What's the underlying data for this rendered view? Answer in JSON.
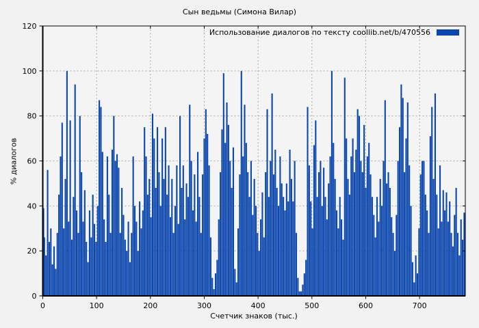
{
  "page": {
    "background": "#f2f2f2"
  },
  "chart_data": {
    "type": "bar",
    "title": "Сын ведьмы (Симона Вилар)",
    "legend": {
      "label": "Использование диалогов по тексту  coollib.net/b/470556",
      "position": "top-right-inside"
    },
    "xlabel": "Счетчик знаков (тыс.)",
    "ylabel": "% диалогов",
    "xlim": [
      0,
      785
    ],
    "ylim": [
      0,
      120
    ],
    "xticks": [
      0,
      100,
      200,
      300,
      400,
      500,
      600,
      700
    ],
    "yticks": [
      0,
      20,
      40,
      60,
      80,
      100,
      120
    ],
    "grid": true,
    "grid_color": "#a8a8a8",
    "bar_color": "#0c47ad",
    "background_color": "#f2f2f2",
    "plot_background": "#f4f4f4",
    "points": [
      [
        0,
        39
      ],
      [
        3,
        26
      ],
      [
        6,
        18
      ],
      [
        9,
        56
      ],
      [
        12,
        24
      ],
      [
        15,
        30
      ],
      [
        18,
        14
      ],
      [
        21,
        22
      ],
      [
        24,
        12
      ],
      [
        27,
        28
      ],
      [
        30,
        45
      ],
      [
        33,
        62
      ],
      [
        36,
        77
      ],
      [
        39,
        30
      ],
      [
        42,
        52
      ],
      [
        45,
        100
      ],
      [
        48,
        33
      ],
      [
        51,
        78
      ],
      [
        54,
        25
      ],
      [
        57,
        44
      ],
      [
        60,
        94
      ],
      [
        63,
        38
      ],
      [
        66,
        28
      ],
      [
        69,
        80
      ],
      [
        72,
        55
      ],
      [
        75,
        33
      ],
      [
        78,
        47
      ],
      [
        81,
        24
      ],
      [
        84,
        15
      ],
      [
        87,
        38
      ],
      [
        90,
        26
      ],
      [
        93,
        45
      ],
      [
        96,
        32
      ],
      [
        99,
        24
      ],
      [
        102,
        40
      ],
      [
        105,
        87
      ],
      [
        108,
        84
      ],
      [
        111,
        64
      ],
      [
        114,
        34
      ],
      [
        117,
        24
      ],
      [
        120,
        62
      ],
      [
        123,
        45
      ],
      [
        126,
        28
      ],
      [
        129,
        65
      ],
      [
        132,
        80
      ],
      [
        135,
        60
      ],
      [
        138,
        63
      ],
      [
        141,
        57
      ],
      [
        144,
        28
      ],
      [
        147,
        48
      ],
      [
        150,
        36
      ],
      [
        153,
        25
      ],
      [
        156,
        20
      ],
      [
        159,
        33
      ],
      [
        162,
        15
      ],
      [
        165,
        28
      ],
      [
        168,
        62
      ],
      [
        171,
        40
      ],
      [
        174,
        33
      ],
      [
        177,
        20
      ],
      [
        180,
        42
      ],
      [
        183,
        30
      ],
      [
        186,
        38
      ],
      [
        189,
        75
      ],
      [
        192,
        62
      ],
      [
        195,
        45
      ],
      [
        198,
        52
      ],
      [
        201,
        35
      ],
      [
        204,
        81
      ],
      [
        207,
        70
      ],
      [
        210,
        48
      ],
      [
        213,
        75
      ],
      [
        216,
        55
      ],
      [
        219,
        40
      ],
      [
        222,
        70
      ],
      [
        225,
        52
      ],
      [
        228,
        75
      ],
      [
        231,
        45
      ],
      [
        234,
        58
      ],
      [
        237,
        35
      ],
      [
        240,
        52
      ],
      [
        243,
        28
      ],
      [
        246,
        40
      ],
      [
        249,
        58
      ],
      [
        252,
        32
      ],
      [
        255,
        80
      ],
      [
        258,
        48
      ],
      [
        261,
        58
      ],
      [
        264,
        34
      ],
      [
        267,
        50
      ],
      [
        270,
        44
      ],
      [
        273,
        85
      ],
      [
        276,
        60
      ],
      [
        279,
        38
      ],
      [
        282,
        54
      ],
      [
        285,
        33
      ],
      [
        288,
        64
      ],
      [
        291,
        44
      ],
      [
        294,
        28
      ],
      [
        297,
        54
      ],
      [
        300,
        70
      ],
      [
        303,
        83
      ],
      [
        306,
        72
      ],
      [
        309,
        58
      ],
      [
        312,
        26
      ],
      [
        315,
        8
      ],
      [
        318,
        3
      ],
      [
        321,
        10
      ],
      [
        324,
        16
      ],
      [
        327,
        34
      ],
      [
        330,
        55
      ],
      [
        333,
        74
      ],
      [
        336,
        99
      ],
      [
        339,
        68
      ],
      [
        342,
        86
      ],
      [
        345,
        76
      ],
      [
        348,
        60
      ],
      [
        351,
        48
      ],
      [
        354,
        66
      ],
      [
        357,
        12
      ],
      [
        360,
        6
      ],
      [
        363,
        30
      ],
      [
        366,
        54
      ],
      [
        369,
        100
      ],
      [
        372,
        62
      ],
      [
        375,
        85
      ],
      [
        378,
        68
      ],
      [
        381,
        55
      ],
      [
        384,
        44
      ],
      [
        387,
        60
      ],
      [
        390,
        36
      ],
      [
        393,
        52
      ],
      [
        396,
        40
      ],
      [
        399,
        28
      ],
      [
        402,
        20
      ],
      [
        405,
        34
      ],
      [
        408,
        46
      ],
      [
        411,
        26
      ],
      [
        414,
        55
      ],
      [
        417,
        83
      ],
      [
        420,
        44
      ],
      [
        423,
        60
      ],
      [
        426,
        90
      ],
      [
        429,
        54
      ],
      [
        432,
        65
      ],
      [
        435,
        48
      ],
      [
        438,
        40
      ],
      [
        441,
        62
      ],
      [
        444,
        50
      ],
      [
        447,
        44
      ],
      [
        450,
        38
      ],
      [
        453,
        50
      ],
      [
        456,
        42
      ],
      [
        459,
        65
      ],
      [
        462,
        52
      ],
      [
        465,
        42
      ],
      [
        468,
        60
      ],
      [
        471,
        28
      ],
      [
        474,
        8
      ],
      [
        477,
        2
      ],
      [
        480,
        2
      ],
      [
        483,
        5
      ],
      [
        486,
        10
      ],
      [
        489,
        16
      ],
      [
        492,
        84
      ],
      [
        495,
        58
      ],
      [
        498,
        42
      ],
      [
        501,
        30
      ],
      [
        504,
        67
      ],
      [
        507,
        78
      ],
      [
        510,
        44
      ],
      [
        513,
        55
      ],
      [
        516,
        60
      ],
      [
        519,
        40
      ],
      [
        522,
        57
      ],
      [
        525,
        44
      ],
      [
        528,
        34
      ],
      [
        531,
        50
      ],
      [
        534,
        62
      ],
      [
        537,
        100
      ],
      [
        540,
        68
      ],
      [
        543,
        52
      ],
      [
        546,
        38
      ],
      [
        549,
        30
      ],
      [
        552,
        44
      ],
      [
        555,
        34
      ],
      [
        558,
        25
      ],
      [
        561,
        97
      ],
      [
        564,
        70
      ],
      [
        567,
        52
      ],
      [
        570,
        45
      ],
      [
        573,
        62
      ],
      [
        576,
        70
      ],
      [
        579,
        55
      ],
      [
        582,
        65
      ],
      [
        585,
        83
      ],
      [
        588,
        80
      ],
      [
        591,
        60
      ],
      [
        594,
        55
      ],
      [
        597,
        76
      ],
      [
        600,
        48
      ],
      [
        603,
        62
      ],
      [
        606,
        68
      ],
      [
        609,
        54
      ],
      [
        612,
        44
      ],
      [
        615,
        36
      ],
      [
        618,
        26
      ],
      [
        621,
        44
      ],
      [
        624,
        33
      ],
      [
        627,
        52
      ],
      [
        630,
        40
      ],
      [
        633,
        60
      ],
      [
        636,
        87
      ],
      [
        639,
        50
      ],
      [
        642,
        55
      ],
      [
        645,
        48
      ],
      [
        648,
        35
      ],
      [
        651,
        28
      ],
      [
        654,
        20
      ],
      [
        657,
        36
      ],
      [
        660,
        60
      ],
      [
        663,
        75
      ],
      [
        666,
        94
      ],
      [
        669,
        88
      ],
      [
        672,
        55
      ],
      [
        675,
        70
      ],
      [
        678,
        86
      ],
      [
        681,
        58
      ],
      [
        684,
        40
      ],
      [
        687,
        15
      ],
      [
        690,
        6
      ],
      [
        693,
        18
      ],
      [
        696,
        10
      ],
      [
        699,
        30
      ],
      [
        702,
        54
      ],
      [
        705,
        60
      ],
      [
        708,
        60
      ],
      [
        711,
        45
      ],
      [
        714,
        38
      ],
      [
        717,
        28
      ],
      [
        720,
        71
      ],
      [
        723,
        84
      ],
      [
        726,
        52
      ],
      [
        729,
        90
      ],
      [
        732,
        45
      ],
      [
        735,
        30
      ],
      [
        738,
        58
      ],
      [
        741,
        33
      ],
      [
        744,
        47
      ],
      [
        747,
        38
      ],
      [
        750,
        46
      ],
      [
        753,
        33
      ],
      [
        756,
        42
      ],
      [
        759,
        28
      ],
      [
        762,
        22
      ],
      [
        765,
        36
      ],
      [
        768,
        48
      ],
      [
        771,
        28
      ],
      [
        774,
        18
      ],
      [
        777,
        34
      ],
      [
        780,
        25
      ],
      [
        783,
        37
      ]
    ]
  }
}
